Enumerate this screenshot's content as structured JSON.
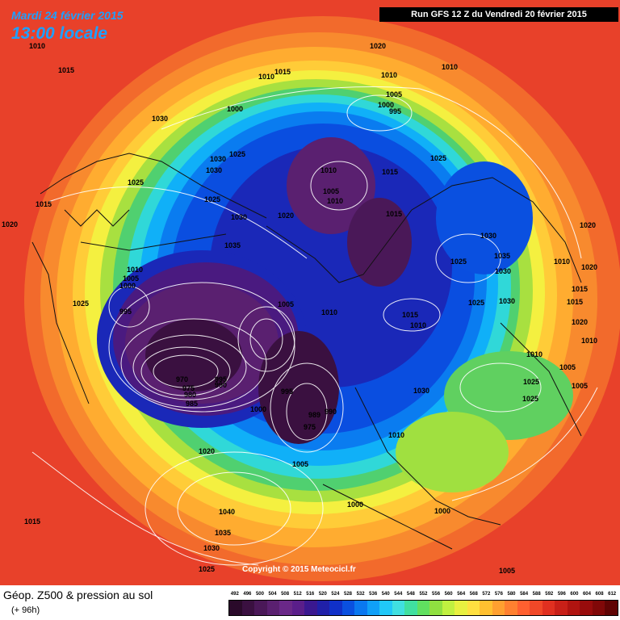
{
  "header": {
    "date": "Mardi 24 février 2015",
    "time": "13:00 locale",
    "run": "Run GFS 12 Z du Vendredi 20 février 2015"
  },
  "map": {
    "copyright": "Copyright © 2015 Meteocicl.fr",
    "pressure_labels": [
      "1010",
      "1015",
      "1030",
      "1020",
      "1025",
      "1015",
      "1030",
      "1025",
      "1020",
      "1010",
      "1010",
      "1015",
      "1010",
      "1005",
      "1000",
      "995",
      "1000",
      "1015",
      "1010",
      "1030",
      "1025",
      "1030",
      "1035",
      "1010",
      "1005",
      "1000",
      "1025",
      "995",
      "1005",
      "1010",
      "1020",
      "1025",
      "1015",
      "1005",
      "1010",
      "1015",
      "1010",
      "1020",
      "1030",
      "1025",
      "1035",
      "1030",
      "1025",
      "1030",
      "1010",
      "1015",
      "1020",
      "1010",
      "1020",
      "1015",
      "1010",
      "1005",
      "1025",
      "1025",
      "1005",
      "970",
      "975",
      "980",
      "985",
      "995",
      "990",
      "1000",
      "995",
      "989",
      "975",
      "990",
      "1030",
      "1010",
      "1005",
      "1020",
      "1000",
      "1040",
      "1035",
      "1030",
      "1025",
      "1015",
      "1000",
      "1005"
    ]
  },
  "footer": {
    "title": "Géop. Z500 & pression au sol",
    "subtitle": "(+ 96h)"
  },
  "legend": {
    "values": [
      "492",
      "496",
      "500",
      "504",
      "508",
      "512",
      "516",
      "520",
      "524",
      "528",
      "532",
      "536",
      "540",
      "544",
      "548",
      "552",
      "556",
      "560",
      "564",
      "568",
      "572",
      "576",
      "580",
      "584",
      "588",
      "592",
      "596",
      "600",
      "604",
      "608",
      "612"
    ],
    "colors": [
      "#2a0a2a",
      "#3a1040",
      "#4a1858",
      "#5a2070",
      "#6a2888",
      "#5a1e8a",
      "#3a1890",
      "#2020a8",
      "#1030c8",
      "#0a50e0",
      "#0a78f0",
      "#10a0f8",
      "#20c8f8",
      "#40e0e0",
      "#40e0a0",
      "#60e060",
      "#90e040",
      "#c0f040",
      "#e8f040",
      "#ffe040",
      "#ffc030",
      "#ffa030",
      "#ff8030",
      "#ff6030",
      "#f04828",
      "#e03020",
      "#c82018",
      "#b01410",
      "#980c0c",
      "#800808",
      "#600404"
    ]
  }
}
